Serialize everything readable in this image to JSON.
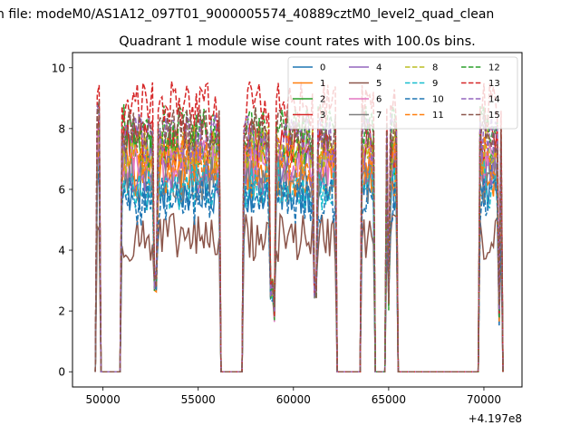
{
  "figure": {
    "suptitle": "n file: modeM0/AS1A12_097T01_9000005574_40889cztM0_level2_quad_clean",
    "offset_label": "+4.197e8"
  },
  "chart_data": {
    "type": "line",
    "title": "Quadrant 1 module wise count rates with 100.0s bins.",
    "xlabel": "",
    "ylabel": "",
    "xlim": [
      48400,
      72000
    ],
    "ylim": [
      -0.5,
      10.5
    ],
    "x_ticks": [
      50000,
      55000,
      60000,
      65000,
      70000
    ],
    "y_ticks": [
      0,
      2,
      4,
      6,
      8,
      10
    ],
    "x_offset": 419700000,
    "grid": false,
    "legend": {
      "placement": "top-right",
      "columns": 4
    },
    "gti_intervals": [
      [
        49650,
        50200
      ],
      [
        51000,
        56100
      ],
      [
        57400,
        62200
      ],
      [
        63550,
        64200
      ],
      [
        64850,
        65450
      ],
      [
        69800,
        70950
      ]
    ],
    "series": [
      {
        "name": "0",
        "color": "#1f77b4",
        "linestyle": "solid",
        "level": 6.0
      },
      {
        "name": "1",
        "color": "#ff7f0e",
        "linestyle": "solid",
        "level": 6.5
      },
      {
        "name": "2",
        "color": "#2ca02c",
        "linestyle": "solid",
        "level": 7.2
      },
      {
        "name": "3",
        "color": "#d62728",
        "linestyle": "solid",
        "level": 7.5
      },
      {
        "name": "4",
        "color": "#9467bd",
        "linestyle": "solid",
        "level": 6.6
      },
      {
        "name": "5",
        "color": "#8c564b",
        "linestyle": "solid",
        "level": 4.4
      },
      {
        "name": "6",
        "color": "#e377c2",
        "linestyle": "solid",
        "level": 6.9
      },
      {
        "name": "7",
        "color": "#7f7f7f",
        "linestyle": "solid",
        "level": 6.3
      },
      {
        "name": "8",
        "color": "#bcbd22",
        "linestyle": "dashed",
        "level": 7.3
      },
      {
        "name": "9",
        "color": "#17becf",
        "linestyle": "dashed",
        "level": 6.1
      },
      {
        "name": "10",
        "color": "#1f77b4",
        "linestyle": "dashed",
        "level": 5.6
      },
      {
        "name": "11",
        "color": "#ff7f0e",
        "linestyle": "dashed",
        "level": 7.0
      },
      {
        "name": "12",
        "color": "#2ca02c",
        "linestyle": "dashed",
        "level": 8.0
      },
      {
        "name": "13",
        "color": "#d62728",
        "linestyle": "dashed",
        "level": 8.8
      },
      {
        "name": "14",
        "color": "#9467bd",
        "linestyle": "dashed",
        "level": 7.7
      },
      {
        "name": "15",
        "color": "#8c564b",
        "linestyle": "dashed",
        "level": 7.9
      }
    ]
  }
}
